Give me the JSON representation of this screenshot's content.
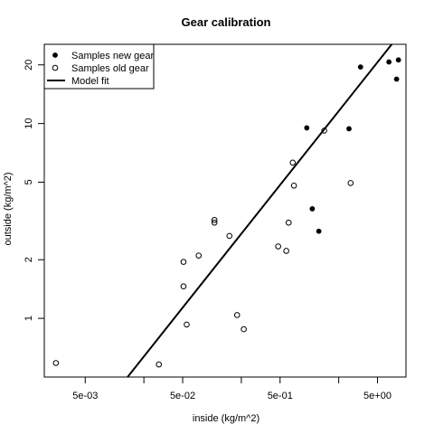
{
  "chart_data": {
    "type": "scatter",
    "title": "Gear calibration",
    "xlabel": "inside (kg/m^2)",
    "ylabel": "outside (kg/m^2)",
    "x_scale": "log",
    "y_scale": "log",
    "xlim": [
      0.0019,
      9.8
    ],
    "ylim": [
      0.5,
      25.5
    ],
    "x_ticks": [
      {
        "value": 0.005,
        "label": "5e-03"
      },
      {
        "value": 0.05,
        "label": "5e-02"
      },
      {
        "value": 0.5,
        "label": "5e-01"
      },
      {
        "value": 5,
        "label": "5e+00"
      }
    ],
    "x_minor_ticks": [
      0.02,
      0.2,
      2
    ],
    "y_ticks": [
      {
        "value": 1,
        "label": "1"
      },
      {
        "value": 2,
        "label": "2"
      },
      {
        "value": 5,
        "label": "5"
      },
      {
        "value": 10,
        "label": "10"
      },
      {
        "value": 20,
        "label": "20"
      }
    ],
    "grid": false,
    "legend": {
      "position": "top-left",
      "entries": [
        {
          "label": "Samples new gear",
          "symbol": "filled-circle"
        },
        {
          "label": "Samples old gear",
          "symbol": "open-circle"
        },
        {
          "label": "Model fit",
          "symbol": "line"
        }
      ]
    },
    "series": [
      {
        "name": "Samples new gear",
        "marker": "filled-circle",
        "points": [
          {
            "x": 0.94,
            "y": 9.5
          },
          {
            "x": 2.55,
            "y": 9.4
          },
          {
            "x": 3.35,
            "y": 19.5
          },
          {
            "x": 6.55,
            "y": 20.7
          },
          {
            "x": 8.2,
            "y": 21.2
          },
          {
            "x": 7.85,
            "y": 16.9
          },
          {
            "x": 1.07,
            "y": 3.65
          },
          {
            "x": 1.25,
            "y": 2.8
          }
        ]
      },
      {
        "name": "Samples old gear",
        "marker": "open-circle",
        "points": [
          {
            "x": 0.0025,
            "y": 0.59
          },
          {
            "x": 0.0285,
            "y": 0.58
          },
          {
            "x": 0.051,
            "y": 1.95
          },
          {
            "x": 0.051,
            "y": 1.46
          },
          {
            "x": 0.055,
            "y": 0.93
          },
          {
            "x": 0.073,
            "y": 2.1
          },
          {
            "x": 0.106,
            "y": 3.1
          },
          {
            "x": 0.106,
            "y": 3.2
          },
          {
            "x": 0.151,
            "y": 2.65
          },
          {
            "x": 0.181,
            "y": 1.04
          },
          {
            "x": 0.212,
            "y": 0.88
          },
          {
            "x": 0.478,
            "y": 2.34
          },
          {
            "x": 0.579,
            "y": 2.22
          },
          {
            "x": 0.612,
            "y": 3.1
          },
          {
            "x": 0.674,
            "y": 6.3
          },
          {
            "x": 0.694,
            "y": 4.8
          },
          {
            "x": 1.42,
            "y": 9.2
          },
          {
            "x": 2.65,
            "y": 4.95
          }
        ]
      },
      {
        "name": "Model fit",
        "type": "line",
        "points": [
          {
            "x": 0.0136,
            "y": 0.5
          },
          {
            "x": 7.0,
            "y": 25.5
          }
        ]
      }
    ]
  }
}
